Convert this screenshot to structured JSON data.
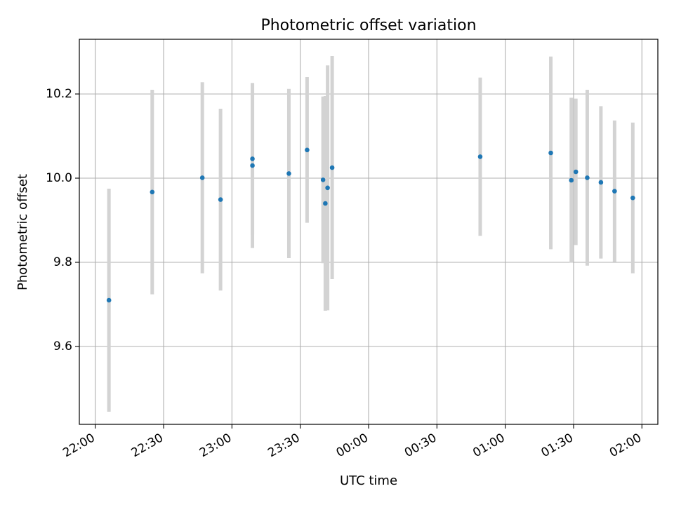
{
  "chart_data": {
    "type": "scatter",
    "title": "Photometric offset variation",
    "xlabel": "UTC time",
    "ylabel": "Photometric offset",
    "x_axis_type": "time",
    "x_domain": [
      "21:53",
      "02:07"
    ],
    "ylim": [
      9.415,
      10.33
    ],
    "grid": true,
    "x_ticks": [
      "22:00",
      "22:30",
      "23:00",
      "23:30",
      "00:00",
      "00:30",
      "01:00",
      "01:30",
      "02:00"
    ],
    "y_ticks": [
      {
        "value": 9.6,
        "label": "9.6"
      },
      {
        "value": 9.8,
        "label": "9.8"
      },
      {
        "value": 10.0,
        "label": "10.0"
      },
      {
        "value": 10.2,
        "label": "10.2"
      }
    ],
    "colors": {
      "point": "#1f77b4",
      "errorbar": "#d3d3d3",
      "grid": "#b0b0b0",
      "axes": "#000000"
    },
    "series": [
      {
        "points": [
          {
            "x": "22:06",
            "y": 9.71,
            "err": 0.265
          },
          {
            "x": "22:25",
            "y": 9.967,
            "err": 0.243
          },
          {
            "x": "22:47",
            "y": 10.001,
            "err": 0.227
          },
          {
            "x": "22:55",
            "y": 9.949,
            "err": 0.216
          },
          {
            "x": "23:09",
            "y": 10.046,
            "err": 0.18
          },
          {
            "x": "23:09",
            "y": 10.03,
            "err": 0.196
          },
          {
            "x": "23:25",
            "y": 10.011,
            "err": 0.201
          },
          {
            "x": "23:33",
            "y": 10.067,
            "err": 0.173
          },
          {
            "x": "23:40",
            "y": 9.996,
            "err": 0.198
          },
          {
            "x": "23:41",
            "y": 9.94,
            "err": 0.255
          },
          {
            "x": "23:42",
            "y": 9.977,
            "err": 0.291
          },
          {
            "x": "23:44",
            "y": 10.025,
            "err": 0.265
          },
          {
            "x": "00:49",
            "y": 10.051,
            "err": 0.188
          },
          {
            "x": "01:20",
            "y": 10.06,
            "err": 0.229
          },
          {
            "x": "01:29",
            "y": 9.995,
            "err": 0.196
          },
          {
            "x": "01:31",
            "y": 10.015,
            "err": 0.174
          },
          {
            "x": "01:36",
            "y": 10.001,
            "err": 0.209
          },
          {
            "x": "01:42",
            "y": 9.99,
            "err": 0.181
          },
          {
            "x": "01:48",
            "y": 9.969,
            "err": 0.168
          },
          {
            "x": "01:56",
            "y": 9.953,
            "err": 0.179
          }
        ]
      }
    ]
  }
}
